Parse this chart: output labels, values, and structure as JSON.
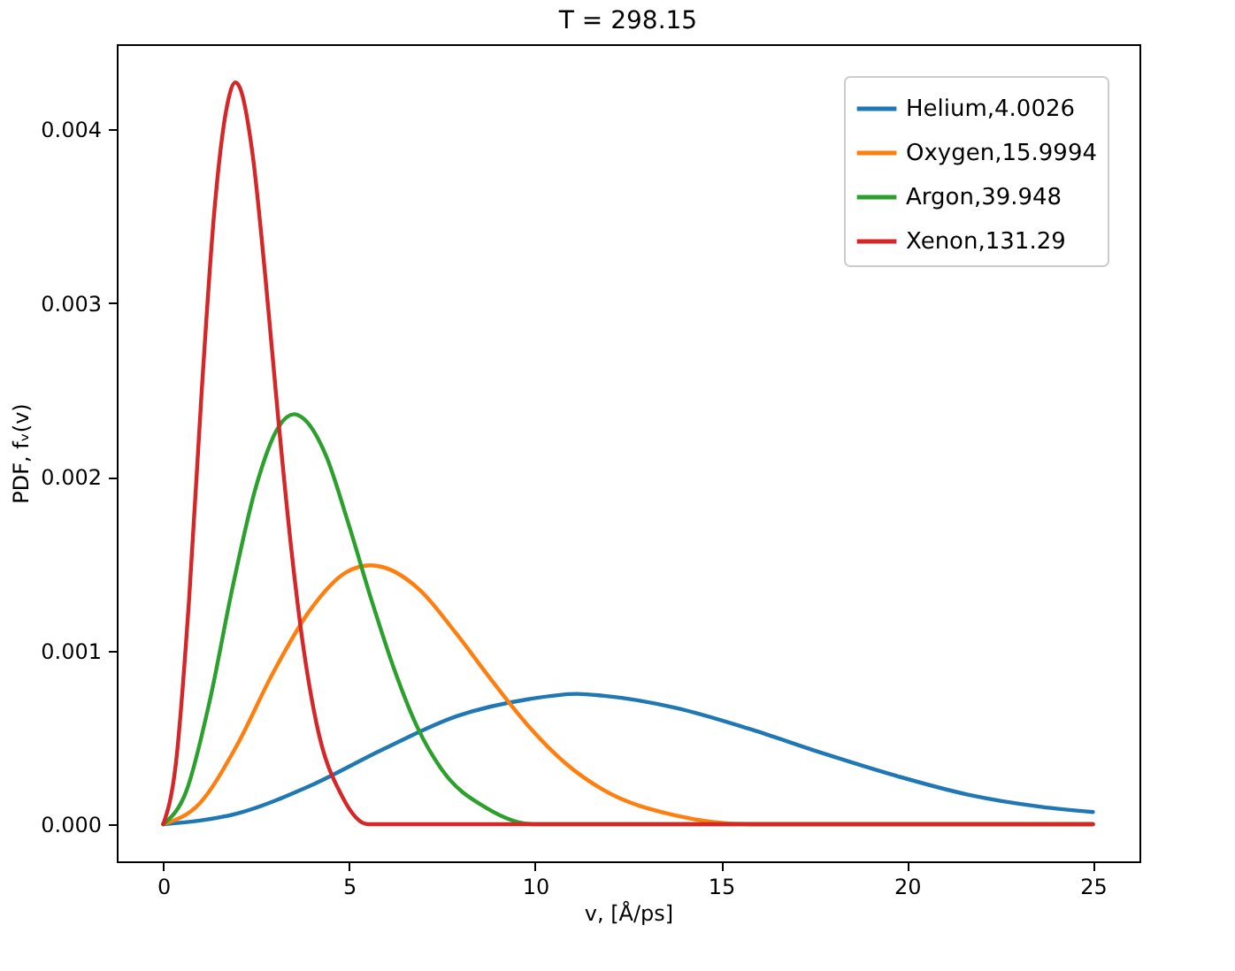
{
  "chart_data": {
    "type": "line",
    "title": "T = 298.15",
    "xlabel": "v, [Å/ps]",
    "ylabel": "PDF, fᵥ(v)",
    "xlim": [
      -1.25,
      26.25
    ],
    "xticks": [
      0,
      5,
      10,
      15,
      20,
      25
    ],
    "ylim": [
      -0.000214,
      0.00449
    ],
    "yticks": [
      {
        "value": 0,
        "label": "0.000"
      },
      {
        "value": 0.001,
        "label": "0.001"
      },
      {
        "value": 0.002,
        "label": "0.002"
      },
      {
        "value": 0.003,
        "label": "0.003"
      },
      {
        "value": 0.004,
        "label": "0.004"
      }
    ],
    "grid": false,
    "legend": "top right",
    "marker": "none",
    "line_style": "solid",
    "series": [
      {
        "name": "Helium,4.0026",
        "color": "#1f77b4",
        "x": [
          0,
          1.97,
          3.94,
          5.9,
          7.87,
          9.84,
          11.13,
          11.81,
          13.77,
          15.74,
          17.71,
          19.68,
          21.64,
          23.61,
          25
        ],
        "values": [
          0,
          6e-05,
          0.00022,
          0.00043,
          0.00062,
          0.00072,
          0.00075,
          0.00074,
          0.00067,
          0.00055,
          0.00041,
          0.00028,
          0.00017,
          0.0001,
          7e-05
        ]
      },
      {
        "name": "Oxygen,15.9994",
        "color": "#ff7f0e",
        "x": [
          0,
          0.98,
          1.97,
          2.95,
          3.94,
          4.92,
          5.57,
          5.9,
          6.89,
          7.87,
          8.86,
          9.84,
          10.82,
          11.81,
          13.78,
          15.74,
          25
        ],
        "values": [
          0,
          0.00012,
          0.00045,
          0.00087,
          0.00123,
          0.00145,
          0.00149,
          0.00148,
          0.00135,
          0.0011,
          0.00082,
          0.00056,
          0.00035,
          0.0002,
          5e-05,
          0,
          0
        ]
      },
      {
        "name": "Argon,39.948",
        "color": "#2ca02c",
        "x": [
          0,
          0.62,
          1.25,
          1.87,
          2.49,
          3.11,
          3.52,
          3.74,
          4.36,
          4.98,
          5.6,
          6.23,
          6.85,
          7.47,
          8.72,
          9.96,
          25
        ],
        "values": [
          0,
          0.00019,
          0.00071,
          0.00137,
          0.00194,
          0.00229,
          0.00236,
          0.00234,
          0.00213,
          0.00173,
          0.00129,
          0.00088,
          0.00055,
          0.00032,
          9e-05,
          0,
          0
        ]
      },
      {
        "name": "Xenon,131.29",
        "color": "#d62728",
        "x": [
          0,
          0.34,
          0.69,
          1.03,
          1.37,
          1.72,
          1.94,
          2.06,
          2.4,
          2.75,
          3.09,
          3.44,
          3.78,
          4.12,
          4.81,
          5.5,
          25
        ],
        "values": [
          0,
          0.00035,
          0.00128,
          0.00248,
          0.00352,
          0.00414,
          0.00427,
          0.00424,
          0.00386,
          0.00314,
          0.00234,
          0.00159,
          0.001,
          0.00058,
          0.00016,
          0,
          0
        ]
      }
    ]
  }
}
